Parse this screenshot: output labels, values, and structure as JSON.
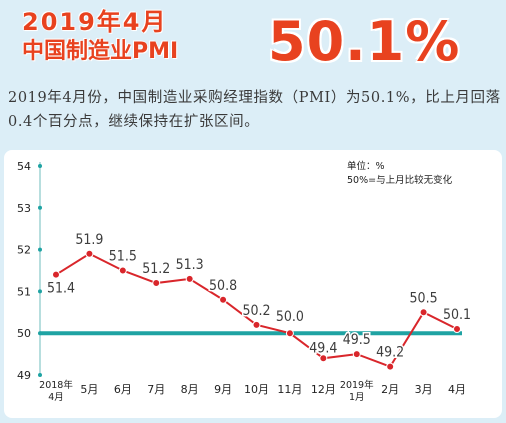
{
  "header": {
    "line1": "2019年4月",
    "line2": "中国制造业PMI",
    "value": "50.1%"
  },
  "summary": "2019年4月份，中国制造业采购经理指数（PMI）为50.1%，比上月回落0.4个百分点，继续保持在扩张区间。",
  "legend_note": {
    "unit": "单位：%",
    "baseline": "50%=与上月比较无变化"
  },
  "colors": {
    "accent": "#e8421f",
    "line": "#d9262b",
    "baseline": "#1fa3a3",
    "panel": "#ffffff",
    "page": "#dceef7"
  },
  "chart_data": {
    "type": "line",
    "title": "",
    "xlabel": "",
    "ylabel": "",
    "categories": [
      "2018年\n4月",
      "5月",
      "6月",
      "7月",
      "8月",
      "9月",
      "10月",
      "11月",
      "12月",
      "2019年\n1月",
      "2月",
      "3月",
      "4月"
    ],
    "values": [
      51.4,
      51.9,
      51.5,
      51.2,
      51.3,
      50.8,
      50.2,
      50.0,
      49.4,
      49.5,
      49.2,
      50.5,
      50.1
    ],
    "value_labels": [
      "51.4",
      "51.9",
      "51.5",
      "51.2",
      "51.3",
      "50.8",
      "50.2",
      "50.0",
      "49.4",
      "49.5",
      "49.2",
      "50.5",
      "50.1"
    ],
    "y_ticks": [
      "49",
      "50",
      "51",
      "52",
      "53",
      "54"
    ],
    "ylim": [
      49,
      54
    ],
    "baseline": 50,
    "grid": false
  }
}
